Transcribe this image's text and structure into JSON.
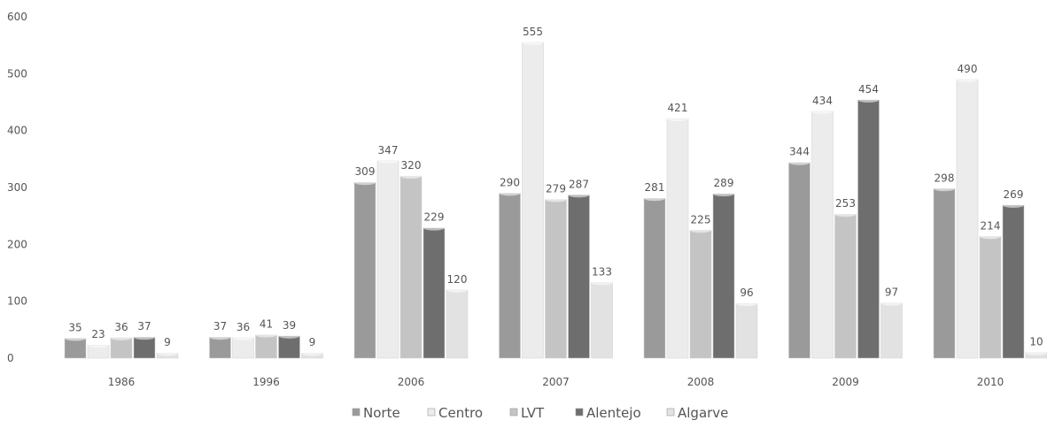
{
  "chart_data": {
    "type": "bar",
    "categories": [
      "1986",
      "1996",
      "2006",
      "2007",
      "2008",
      "2009",
      "2010"
    ],
    "series": [
      {
        "name": "Norte",
        "values": [
          35,
          37,
          309,
          290,
          281,
          344,
          298
        ]
      },
      {
        "name": "Centro",
        "values": [
          23,
          36,
          347,
          555,
          421,
          434,
          490
        ]
      },
      {
        "name": "LVT",
        "values": [
          36,
          41,
          320,
          279,
          225,
          253,
          214
        ]
      },
      {
        "name": "Alentejo",
        "values": [
          37,
          39,
          229,
          287,
          289,
          454,
          269
        ]
      },
      {
        "name": "Algarve",
        "values": [
          9,
          9,
          120,
          133,
          96,
          97,
          10
        ]
      }
    ],
    "data_label_text": [
      [
        "35",
        "37",
        "309",
        "290",
        "281",
        "344",
        "298"
      ],
      [
        "23",
        "36",
        "347",
        "555",
        "421",
        "434",
        "490"
      ],
      [
        "36",
        "41",
        "320",
        "279",
        "225",
        "253",
        "214"
      ],
      [
        "37",
        "39",
        "229",
        "287",
        "289",
        "454",
        "269"
      ],
      [
        "9",
        "9",
        "120",
        "133",
        "96",
        "97",
        "10"
      ]
    ],
    "colors": [
      "#9a9a9a",
      "#ececec",
      "#c4c4c4",
      "#6e6e6e",
      "#e2e2e2"
    ],
    "yticks": [
      "0",
      "100",
      "200",
      "300",
      "400",
      "500",
      "600"
    ],
    "ylim": [
      0,
      600
    ],
    "grid": false,
    "legend": "bottom",
    "title": "",
    "xlabel": "",
    "ylabel": ""
  }
}
